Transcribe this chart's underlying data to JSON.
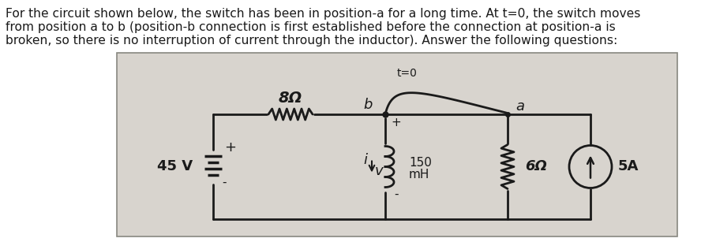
{
  "paragraph_text": "For the circuit shown below, the switch has been in position-a for a long time. At t=0, the switch moves\nfrom position a to b (position-b connection is first established before the connection at position-a is\nbroken, so there is no interruption of current through the inductor). Answer the following questions:",
  "bg_color": "#ffffff",
  "circuit_bg": "#d8d4ce",
  "text_fontsize": 11.2,
  "line_color": "#1a1a1a",
  "text_color": "#1a1a1a",
  "labels": {
    "resistor_top": "8Ω",
    "switch_b": "b",
    "switch_a": "a",
    "switch_t": "t=0",
    "voltage_src": "45 V",
    "inductor_val": "150",
    "inductor_unit": "mH",
    "current_i": "i",
    "voltage_v": "v",
    "resistor_right": "6Ω",
    "current_src": "5A",
    "plus_top": "+",
    "plus_bat": "+",
    "minus_bat": "-"
  }
}
